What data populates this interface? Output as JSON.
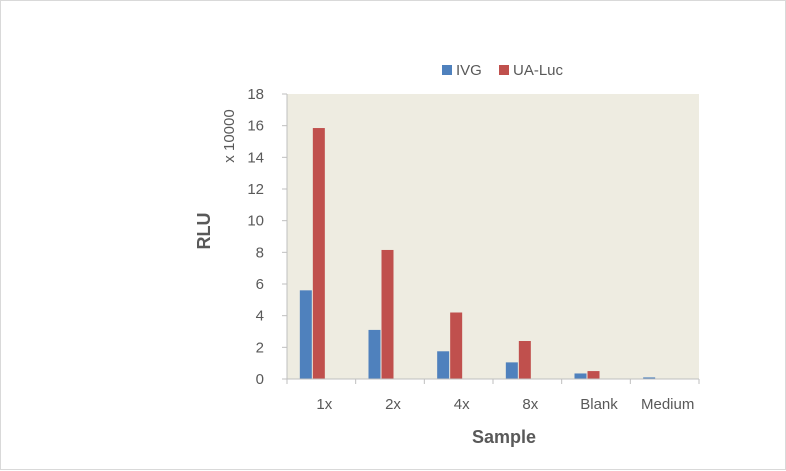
{
  "chart_data": {
    "type": "bar",
    "categories": [
      "1x",
      "2x",
      "4x",
      "8x",
      "Blank",
      "Medium"
    ],
    "series": [
      {
        "name": "IVG",
        "values": [
          5.6,
          3.1,
          1.75,
          1.05,
          0.35,
          0.1
        ]
      },
      {
        "name": "UA-Luc",
        "values": [
          15.85,
          8.15,
          4.2,
          2.4,
          0.5,
          0.0
        ]
      }
    ],
    "xlabel": "Sample",
    "ylabel": "RLU",
    "yunit": "x 10000",
    "ylim": [
      0,
      18
    ],
    "yticks": [
      0,
      2,
      4,
      6,
      8,
      10,
      12,
      14,
      16,
      18
    ],
    "legend_position": "top",
    "grid": false,
    "colors": {
      "IVG": "#4f81bd",
      "UA-Luc": "#c0504d",
      "plot_background": "#eeece1"
    }
  }
}
